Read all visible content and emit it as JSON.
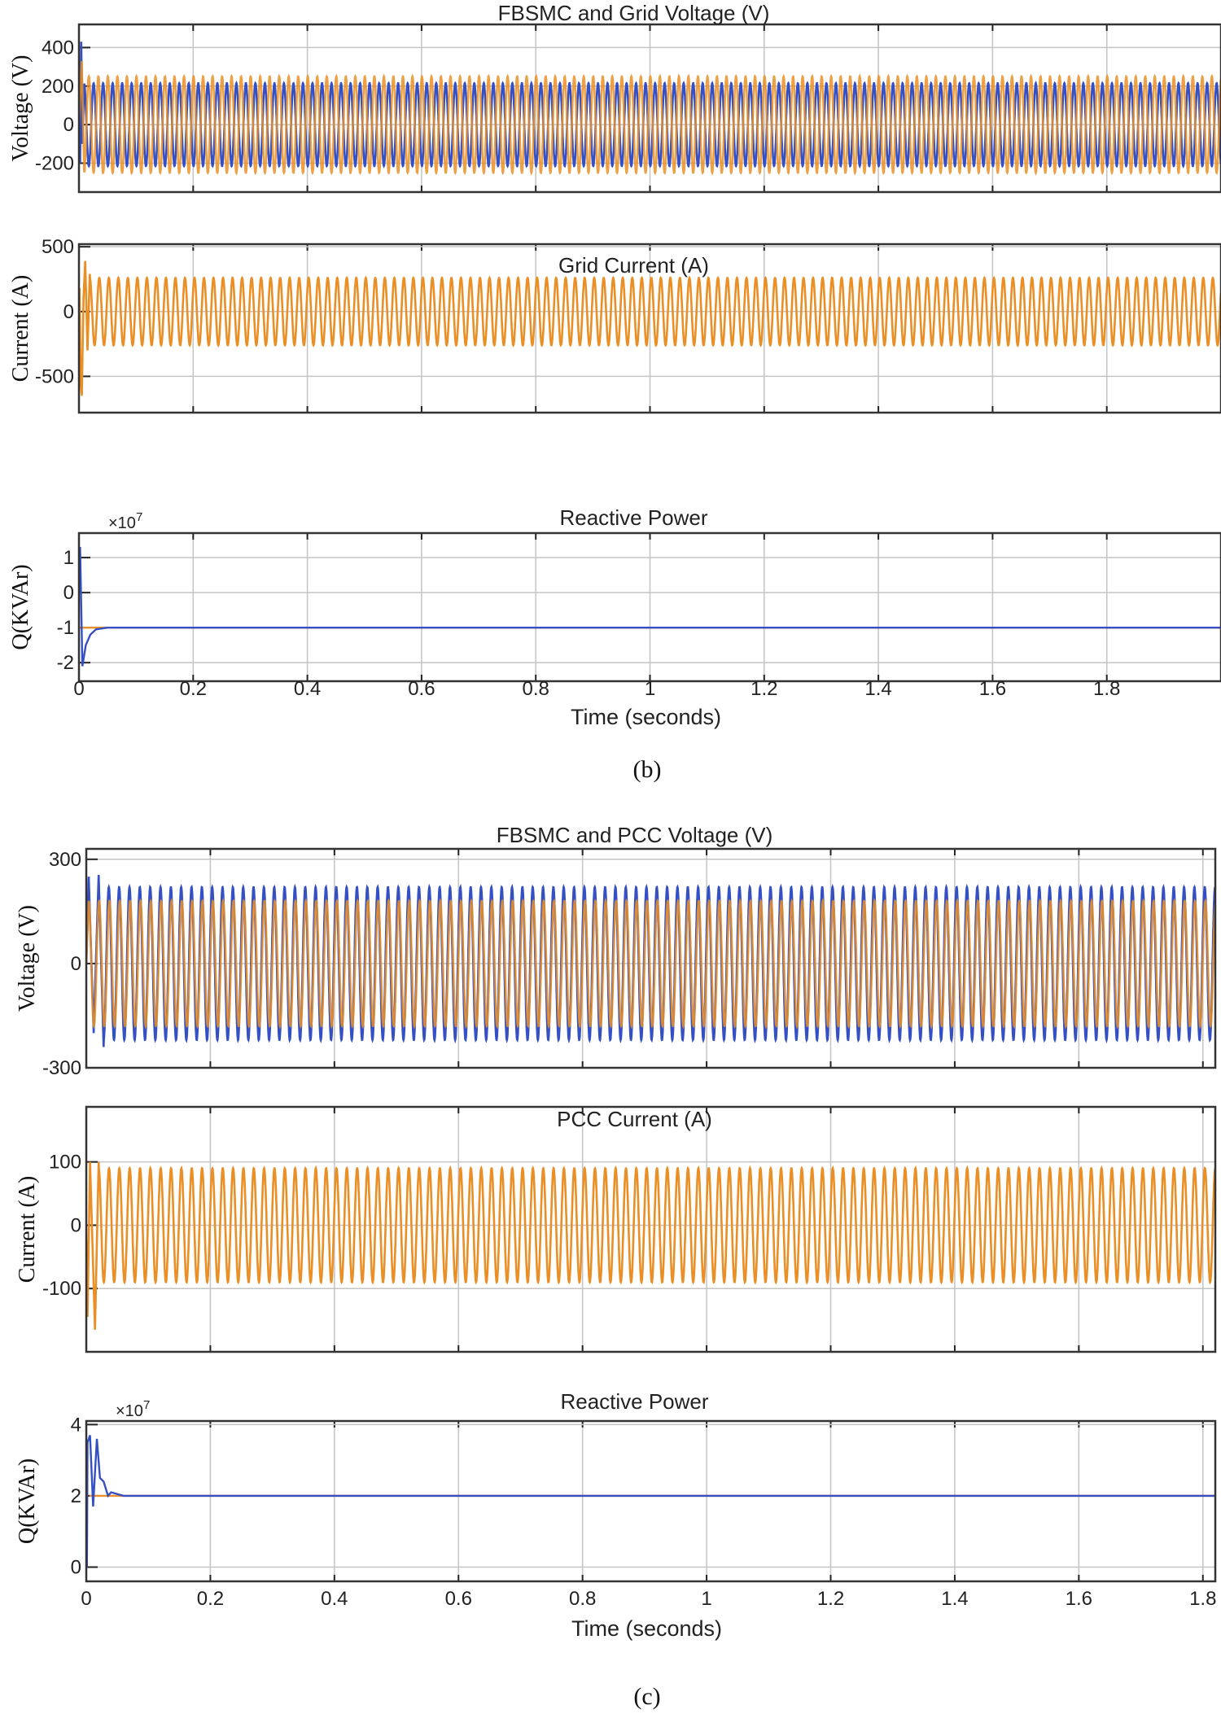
{
  "captions": [
    "(b)",
    "(c)"
  ],
  "chart_data": [
    {
      "type": "line",
      "title": "FBSMC and Grid Voltage (V)",
      "ylabel": "Voltage (V)",
      "xlabel": "",
      "xlim": [
        0,
        2.0
      ],
      "ylim": [
        -350,
        520
      ],
      "yticks": [
        -200,
        0,
        200,
        400
      ],
      "xticks": [
        0,
        0.2,
        0.4,
        0.6,
        0.8,
        1.0,
        1.2,
        1.4,
        1.6,
        1.8
      ],
      "xticklabels": [],
      "grid": true,
      "series": [
        {
          "color": "#3550c4",
          "kind": "sine",
          "amplitude": 215,
          "frequency_hz": 60,
          "transient": [
            [
              0,
              100
            ],
            [
              0.002,
              -200
            ],
            [
              0.004,
              430
            ],
            [
              0.006,
              -100
            ],
            [
              0.009,
              200
            ]
          ]
        },
        {
          "color": "#ea8f26",
          "kind": "sine",
          "amplitude": 250,
          "frequency_hz": 60,
          "transient": [
            [
              0,
              0
            ],
            [
              0.005,
              330
            ],
            [
              0.009,
              -230
            ]
          ]
        }
      ]
    },
    {
      "type": "line",
      "title": "Grid Current (A)",
      "ylabel": "Current (A)",
      "xlabel": "",
      "xlim": [
        0,
        2.0
      ],
      "ylim": [
        -780,
        520
      ],
      "yticks": [
        -500,
        0,
        500
      ],
      "xticks": [
        0,
        0.2,
        0.4,
        0.6,
        0.8,
        1.0,
        1.2,
        1.4,
        1.6,
        1.8
      ],
      "xticklabels": [],
      "grid": true,
      "series": [
        {
          "color": "#ea8f26",
          "kind": "sine",
          "amplitude": 260,
          "frequency_hz": 60,
          "transient": [
            [
              0,
              0
            ],
            [
              0.001,
              180
            ],
            [
              0.003,
              -550
            ],
            [
              0.005,
              -650
            ],
            [
              0.008,
              100
            ],
            [
              0.011,
              390
            ],
            [
              0.015,
              -300
            ],
            [
              0.019,
              290
            ]
          ]
        }
      ]
    },
    {
      "type": "line",
      "title": "Reactive Power",
      "ylabel": "Q(KVAr)",
      "xlabel": "Time (seconds)",
      "exponent": "×10",
      "exponent_power": "7",
      "xlim": [
        0,
        2.0
      ],
      "ylim": [
        -2.53,
        1.7
      ],
      "yticks": [
        -2,
        -1,
        0,
        1
      ],
      "xticks": [
        0,
        0.2,
        0.4,
        0.6,
        0.8,
        1.0,
        1.2,
        1.4,
        1.6,
        1.8
      ],
      "xticklabels": [
        "0",
        "0.2",
        "0.4",
        "0.6",
        "0.8",
        "1",
        "1.2",
        "1.4",
        "1.6",
        "1.8"
      ],
      "grid": true,
      "series": [
        {
          "color": "#ea8f26",
          "kind": "points",
          "points": [
            [
              0,
              -1
            ],
            [
              2.0,
              -1
            ]
          ]
        },
        {
          "color": "#3550c4",
          "kind": "points",
          "points": [
            [
              0,
              0
            ],
            [
              0.002,
              1.3
            ],
            [
              0.006,
              -2.1
            ],
            [
              0.012,
              -1.5
            ],
            [
              0.02,
              -1.2
            ],
            [
              0.03,
              -1.05
            ],
            [
              0.05,
              -1.0
            ],
            [
              2.0,
              -1.0
            ]
          ]
        }
      ]
    },
    {
      "type": "line",
      "title": "FBSMC and PCC Voltage (V)",
      "ylabel": "Voltage (V)",
      "xlabel": "",
      "xlim": [
        0,
        1.82
      ],
      "ylim": [
        -300,
        330
      ],
      "yticks": [
        -300,
        0,
        300
      ],
      "xticks": [
        0,
        0.2,
        0.4,
        0.6,
        0.8,
        1.0,
        1.2,
        1.4,
        1.6,
        1.8
      ],
      "xticklabels": [],
      "grid": true,
      "series": [
        {
          "color": "#3550c4",
          "kind": "sine",
          "amplitude": 220,
          "frequency_hz": 60,
          "transient": [
            [
              0,
              0
            ],
            [
              0.004,
              250
            ],
            [
              0.012,
              -200
            ],
            [
              0.02,
              255
            ],
            [
              0.028,
              -240
            ]
          ]
        },
        {
          "color": "#ea8f26",
          "kind": "sine",
          "amplitude": 180,
          "frequency_hz": 60,
          "transient": [
            [
              0,
              0
            ],
            [
              0.004,
              180
            ]
          ]
        }
      ]
    },
    {
      "type": "line",
      "title": "PCC Current (A)",
      "ylabel": "Current (A)",
      "xlabel": "",
      "xlim": [
        0,
        1.82
      ],
      "ylim": [
        -200,
        187
      ],
      "yticks": [
        -100,
        0,
        100
      ],
      "xticks": [
        0,
        0.2,
        0.4,
        0.6,
        0.8,
        1.0,
        1.2,
        1.4,
        1.6,
        1.8
      ],
      "xticklabels": [],
      "grid": true,
      "series": [
        {
          "color": "#ea8f26",
          "kind": "sine",
          "amplitude": 90,
          "frequency_hz": 60,
          "transient": [
            [
              0,
              0
            ],
            [
              0.002,
              -145
            ],
            [
              0.006,
              100
            ],
            [
              0.014,
              -165
            ],
            [
              0.02,
              100
            ]
          ]
        }
      ]
    },
    {
      "type": "line",
      "title": "Reactive Power",
      "ylabel": "Q(KVAr)",
      "xlabel": "Time (seconds)",
      "exponent": "×10",
      "exponent_power": "7",
      "xlim": [
        0,
        1.82
      ],
      "ylim": [
        -0.4,
        4.1
      ],
      "yticks": [
        0,
        2,
        4
      ],
      "xticks": [
        0,
        0.2,
        0.4,
        0.6,
        0.8,
        1.0,
        1.2,
        1.4,
        1.6,
        1.8
      ],
      "xticklabels": [
        "0",
        "0.2",
        "0.4",
        "0.6",
        "0.8",
        "1",
        "1.2",
        "1.4",
        "1.6",
        "1.8"
      ],
      "grid": true,
      "series": [
        {
          "color": "#ea8f26",
          "kind": "points",
          "points": [
            [
              0.005,
              2
            ],
            [
              1.82,
              2
            ]
          ]
        },
        {
          "color": "#3550c4",
          "kind": "points",
          "points": [
            [
              0,
              0
            ],
            [
              0.001,
              0
            ],
            [
              0.002,
              3.5
            ],
            [
              0.006,
              3.7
            ],
            [
              0.011,
              1.7
            ],
            [
              0.017,
              3.6
            ],
            [
              0.022,
              2.5
            ],
            [
              0.028,
              2.4
            ],
            [
              0.035,
              2.0
            ],
            [
              0.04,
              2.1
            ],
            [
              0.06,
              2.0
            ],
            [
              1.82,
              2.0
            ]
          ]
        }
      ]
    }
  ]
}
